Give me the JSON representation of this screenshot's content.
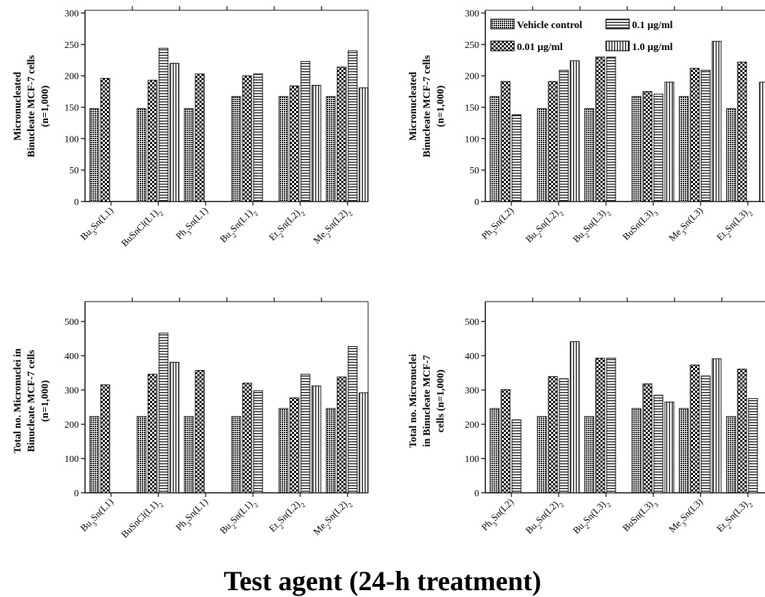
{
  "figure_xlabel": "Test agent (24-h treatment)",
  "legend": [
    {
      "label": "Vehicle control",
      "pattern": "vehicle"
    },
    {
      "label": "0.1 µg/ml",
      "pattern": "hstripe"
    },
    {
      "label": "0.01 µg/ml",
      "pattern": "check"
    },
    {
      "label": "1.0 µg/ml",
      "pattern": "vstripe"
    }
  ],
  "chart_data": [
    {
      "type": "bar",
      "ylabel": [
        "Micronucleated",
        "Binucleate MCF-7 cells",
        "(n=1,000)"
      ],
      "ylim": [
        0,
        300
      ],
      "yticks": [
        0,
        50,
        100,
        150,
        200,
        250,
        300
      ],
      "categories": [
        [
          [
            "Bu",
            ""
          ],
          [
            "3",
            "sub"
          ],
          [
            "Sn(L1)",
            ""
          ]
        ],
        [
          [
            "BuSnCl(L1)",
            ""
          ],
          [
            "2",
            "sub"
          ]
        ],
        [
          [
            "Ph",
            ""
          ],
          [
            "3",
            "sub"
          ],
          [
            "Sn(L1)",
            ""
          ]
        ],
        [
          [
            "Bu",
            ""
          ],
          [
            "2",
            "sub"
          ],
          [
            "Sn(L1)",
            ""
          ],
          [
            "2",
            "sub"
          ]
        ],
        [
          [
            "Et",
            ""
          ],
          [
            "2",
            "sub"
          ],
          [
            "Sn(L2)",
            ""
          ],
          [
            "2",
            "sub"
          ]
        ],
        [
          [
            "Me",
            ""
          ],
          [
            "2",
            "sub"
          ],
          [
            "Sn(L2)",
            ""
          ],
          [
            "2",
            "sub"
          ]
        ]
      ],
      "series": [
        {
          "name": "Vehicle control",
          "pattern": "vehicle",
          "values": [
            148,
            148,
            148,
            167,
            167,
            167
          ]
        },
        {
          "name": "0.01 µg/ml",
          "pattern": "check",
          "values": [
            196,
            193,
            203,
            200,
            184,
            214
          ]
        },
        {
          "name": "0.1 µg/ml",
          "pattern": "hstripe",
          "values": [
            0,
            244,
            0,
            203,
            223,
            240
          ]
        },
        {
          "name": "1.0 µg/ml",
          "pattern": "vstripe",
          "values": [
            0,
            220,
            0,
            0,
            185,
            181
          ]
        }
      ]
    },
    {
      "type": "bar",
      "ylabel": [
        "Micronucleated",
        "Binucleate MCF-7 cells",
        "(n=1,000)"
      ],
      "ylim": [
        0,
        300
      ],
      "yticks": [
        0,
        50,
        100,
        150,
        200,
        250,
        300
      ],
      "categories": [
        [
          [
            "Ph",
            ""
          ],
          [
            "3",
            "sub"
          ],
          [
            "Sn(L2)",
            ""
          ]
        ],
        [
          [
            "Bu",
            ""
          ],
          [
            "2",
            "sub"
          ],
          [
            "Sn(L2)",
            ""
          ],
          [
            "2",
            "sub"
          ]
        ],
        [
          [
            "Bu",
            ""
          ],
          [
            "2",
            "sub"
          ],
          [
            "Sn(L3)",
            ""
          ],
          [
            "2",
            "sub"
          ]
        ],
        [
          [
            "BuSn(L3)",
            ""
          ],
          [
            "3",
            "sub"
          ]
        ],
        [
          [
            "Me",
            ""
          ],
          [
            "3",
            "sub"
          ],
          [
            "Sn(L3)",
            ""
          ]
        ],
        [
          [
            "Et",
            ""
          ],
          [
            "2",
            "sub"
          ],
          [
            "Sn(L3)",
            ""
          ],
          [
            "2",
            "sub"
          ]
        ]
      ],
      "series": [
        {
          "name": "Vehicle control",
          "pattern": "vehicle",
          "values": [
            167,
            148,
            148,
            167,
            167,
            148
          ]
        },
        {
          "name": "0.01 µg/ml",
          "pattern": "check",
          "values": [
            191,
            191,
            230,
            175,
            212,
            222
          ]
        },
        {
          "name": "0.1 µg/ml",
          "pattern": "hstripe",
          "values": [
            138,
            209,
            230,
            171,
            209,
            0
          ]
        },
        {
          "name": "1.0 µg/ml",
          "pattern": "vstripe",
          "values": [
            0,
            224,
            0,
            190,
            255,
            190
          ]
        }
      ]
    },
    {
      "type": "bar",
      "ylabel": [
        "Total no. Micronuclei in",
        "Binucleate MCF-7 cells",
        "(n=1,000)"
      ],
      "ylim": [
        0,
        550
      ],
      "yticks": [
        0,
        100,
        200,
        300,
        400,
        500
      ],
      "categories": [
        [
          [
            "Bu",
            ""
          ],
          [
            "3",
            "sub"
          ],
          [
            "Sn(L1)",
            ""
          ]
        ],
        [
          [
            "BuSnCl(L1)",
            ""
          ],
          [
            "2",
            "sub"
          ]
        ],
        [
          [
            "Ph",
            ""
          ],
          [
            "3",
            "sub"
          ],
          [
            "Sn(L1)",
            ""
          ]
        ],
        [
          [
            "Bu",
            ""
          ],
          [
            "2",
            "sub"
          ],
          [
            "Sn(L1)",
            ""
          ],
          [
            "2",
            "sub"
          ]
        ],
        [
          [
            "Et",
            ""
          ],
          [
            "2",
            "sub"
          ],
          [
            "Sn(L2)",
            ""
          ],
          [
            "2",
            "sub"
          ]
        ],
        [
          [
            "Me",
            ""
          ],
          [
            "2",
            "sub"
          ],
          [
            "Sn(L2)",
            ""
          ],
          [
            "2",
            "sub"
          ]
        ]
      ],
      "series": [
        {
          "name": "Vehicle control",
          "pattern": "vehicle",
          "values": [
            223,
            223,
            223,
            223,
            246,
            246
          ]
        },
        {
          "name": "0.01 µg/ml",
          "pattern": "check",
          "values": [
            315,
            346,
            357,
            320,
            277,
            338
          ]
        },
        {
          "name": "0.1 µg/ml",
          "pattern": "hstripe",
          "values": [
            0,
            466,
            0,
            298,
            346,
            427
          ]
        },
        {
          "name": "1.0 µg/ml",
          "pattern": "vstripe",
          "values": [
            0,
            381,
            0,
            0,
            312,
            292
          ]
        }
      ]
    },
    {
      "type": "bar",
      "ylabel": [
        "Total no. Micronuclei",
        "in Binucleate MCF-7",
        "cells (n=1,000)"
      ],
      "ylim": [
        0,
        550
      ],
      "yticks": [
        0,
        100,
        200,
        300,
        400,
        500
      ],
      "categories": [
        [
          [
            "Ph",
            ""
          ],
          [
            "3",
            "sub"
          ],
          [
            "Sn(L2)",
            ""
          ]
        ],
        [
          [
            "Bu",
            ""
          ],
          [
            "2",
            "sub"
          ],
          [
            "Sn(L2)",
            ""
          ],
          [
            "2",
            "sub"
          ]
        ],
        [
          [
            "Bu",
            ""
          ],
          [
            "2",
            "sub"
          ],
          [
            "Sn(L3)",
            ""
          ],
          [
            "2",
            "sub"
          ]
        ],
        [
          [
            "BuSn(L3)",
            ""
          ],
          [
            "3",
            "sub"
          ]
        ],
        [
          [
            "Me",
            ""
          ],
          [
            "3",
            "sub"
          ],
          [
            "Sn(L3)",
            ""
          ]
        ],
        [
          [
            "Et",
            ""
          ],
          [
            "2",
            "sub"
          ],
          [
            "Sn(L3)",
            ""
          ],
          [
            "2",
            "sub"
          ]
        ]
      ],
      "series": [
        {
          "name": "Vehicle control",
          "pattern": "vehicle",
          "values": [
            246,
            223,
            223,
            246,
            246,
            223
          ]
        },
        {
          "name": "0.01 µg/ml",
          "pattern": "check",
          "values": [
            301,
            339,
            393,
            318,
            373,
            361
          ]
        },
        {
          "name": "0.1 µg/ml",
          "pattern": "hstripe",
          "values": [
            213,
            333,
            393,
            285,
            341,
            275
          ]
        },
        {
          "name": "1.0 µg/ml",
          "pattern": "vstripe",
          "values": [
            0,
            441,
            0,
            265,
            391,
            0
          ]
        }
      ]
    }
  ]
}
